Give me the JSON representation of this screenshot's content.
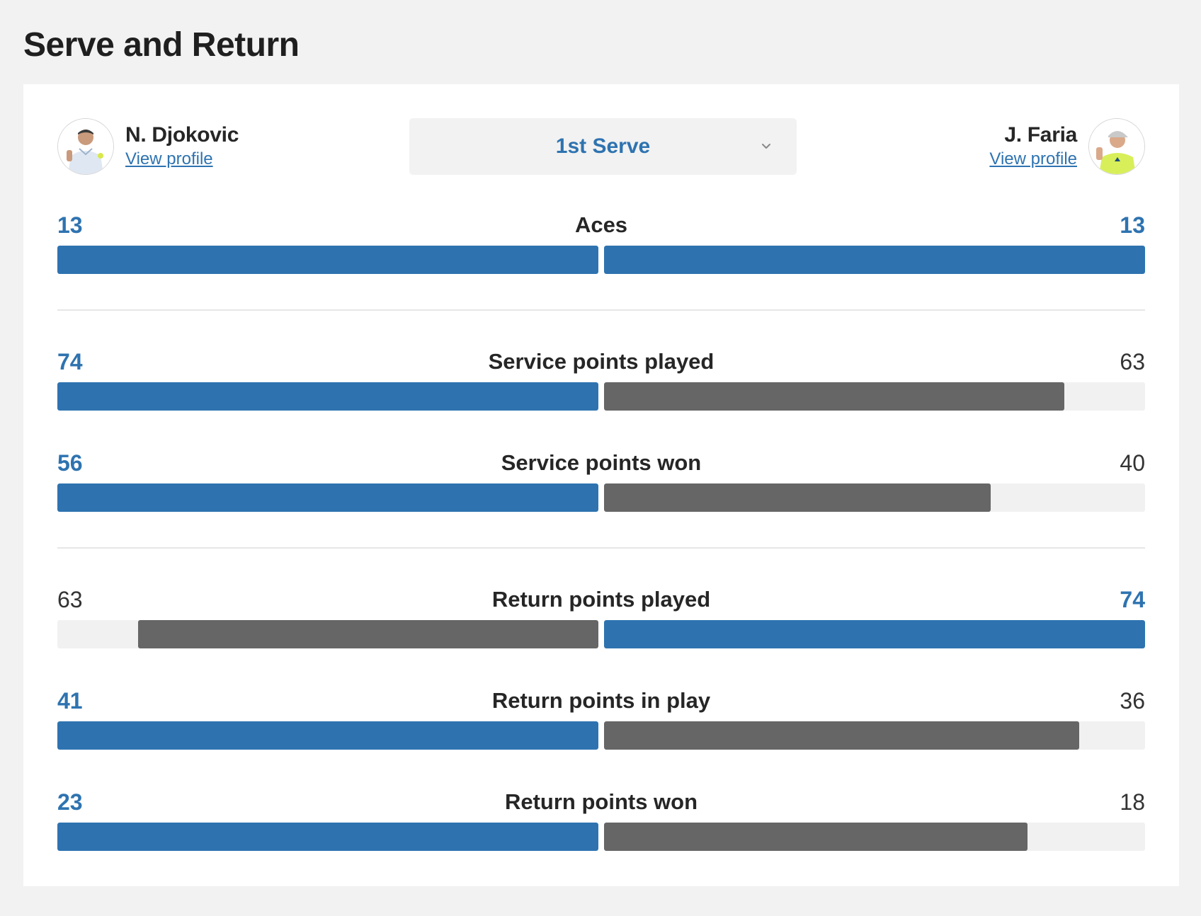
{
  "page": {
    "title": "Serve and Return"
  },
  "players": {
    "left": {
      "name": "N. Djokovic",
      "profile_link": "View profile",
      "shirt_color": "#dfe7f2"
    },
    "right": {
      "name": "J. Faria",
      "profile_link": "View profile",
      "shirt_color": "#d8ef5a"
    }
  },
  "serve_select": {
    "value": "1st Serve",
    "icon": "chevron-down-icon"
  },
  "stats": [
    {
      "label": "Aces",
      "left": "13",
      "right": "13",
      "left_value": 13,
      "right_value": 13
    },
    {
      "label": "Service points played",
      "left": "74",
      "right": "63",
      "left_value": 74,
      "right_value": 63
    },
    {
      "label": "Service points won",
      "left": "56",
      "right": "40",
      "left_value": 56,
      "right_value": 40
    },
    {
      "label": "Return points played",
      "left": "63",
      "right": "74",
      "left_value": 63,
      "right_value": 74
    },
    {
      "label": "Return points in play",
      "left": "41",
      "right": "36",
      "left_value": 41,
      "right_value": 36
    },
    {
      "label": "Return points won",
      "left": "23",
      "right": "18",
      "left_value": 23,
      "right_value": 18
    }
  ],
  "colors": {
    "leader": "#2e73b0",
    "trailer": "#666666",
    "track": "#f1f1f1"
  }
}
